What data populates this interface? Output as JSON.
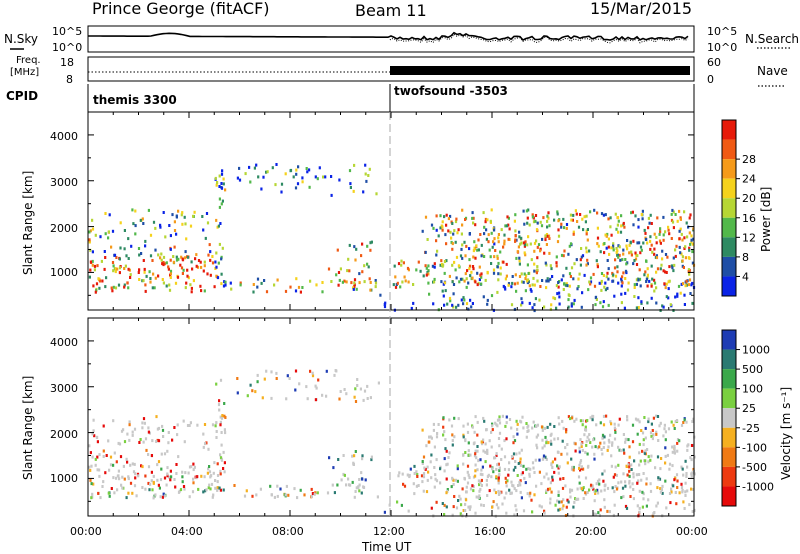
{
  "header": {
    "station": "Prince George (fitACF)",
    "beam": "Beam 11",
    "date": "15/Mar/2015"
  },
  "side_labels": {
    "nsky": "N.Sky",
    "nsearch": "N.Search",
    "freq": "Freq.",
    "freq_unit": "[MHz]",
    "nave": "Nave",
    "cpid": "CPID"
  },
  "noise_panel": {
    "left_ticks": [
      "10^5",
      "10^0"
    ],
    "right_ticks": [
      "10^5",
      "10^0"
    ]
  },
  "freq_panel": {
    "left_ticks": [
      "18",
      "8"
    ],
    "right_ticks": [
      "60",
      "0"
    ]
  },
  "cpid_panel": {
    "programs": [
      {
        "name": "themis 3300",
        "start_hour": 0
      },
      {
        "name": "twofsound -3503",
        "start_hour": 12
      }
    ]
  },
  "time_axis": {
    "label": "Time UT",
    "ticks": [
      "00:00",
      "04:00",
      "08:00",
      "12:00",
      "16:00",
      "20:00",
      "00:00"
    ]
  },
  "range_axis": {
    "label": "Slant Range [km]",
    "ticks": [
      "1000",
      "2000",
      "3000",
      "4000"
    ]
  },
  "power_scale": {
    "label": "Power [dB]",
    "ticks": [
      "4",
      "8",
      "12",
      "16",
      "20",
      "24",
      "28"
    ],
    "colors": [
      "#0a23e6",
      "#1e4ea6",
      "#2e8a62",
      "#52b84a",
      "#b6d634",
      "#f5d21c",
      "#f59a1a",
      "#f05a14",
      "#e61a0a"
    ]
  },
  "velocity_scale": {
    "label": "Velocity [m s⁻¹]",
    "ticks": [
      "1000",
      "500",
      "100",
      "25",
      "-25",
      "-100",
      "-500",
      "-1000"
    ],
    "colors": [
      "#1e3cb4",
      "#2a7a72",
      "#3aa84a",
      "#7ad040",
      "#c8c8c8",
      "#f5b020",
      "#f07a14",
      "#ee3a10",
      "#e60a0a"
    ]
  },
  "chart_data": {
    "type": "heatmap",
    "x_range_hours": [
      0,
      24
    ],
    "y_range_km": [
      180,
      4500
    ],
    "grid": false,
    "panels": [
      "power",
      "velocity"
    ]
  }
}
